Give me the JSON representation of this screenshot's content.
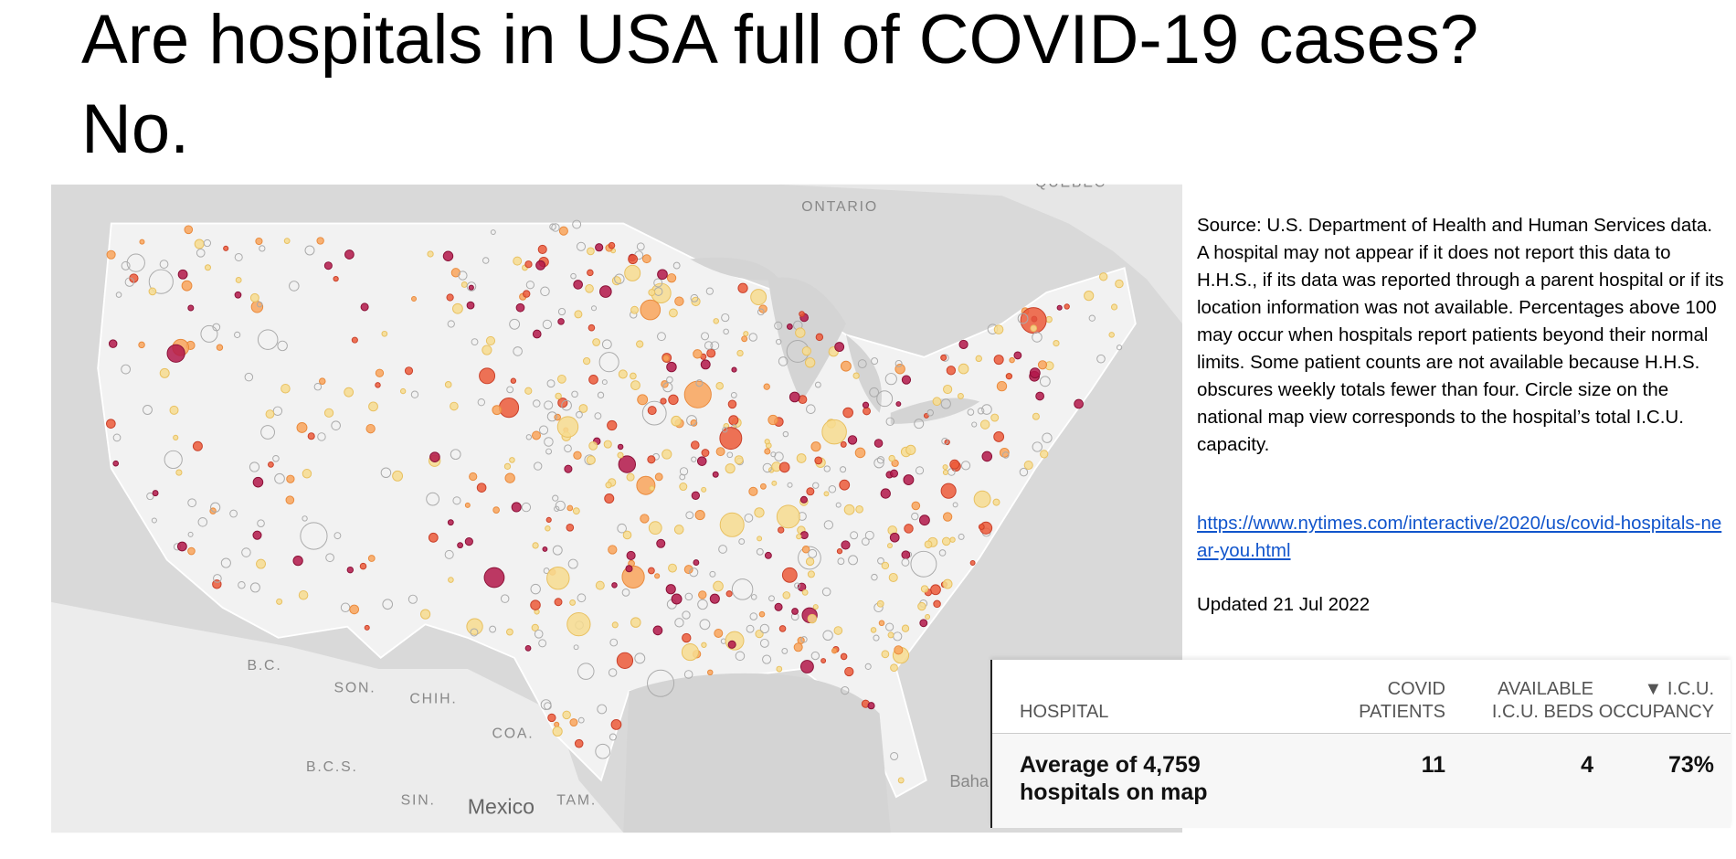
{
  "title": {
    "lines": [
      "Are hospitals in USA full of COVID-19 cases?",
      "No."
    ]
  },
  "map": {
    "labels": [
      "ONTARIO",
      "QUEBEC",
      "B.C.",
      "SON.",
      "CHIH.",
      "COA.",
      "B.C.S.",
      "SIN.",
      "TAM.",
      "Mexico",
      "Baha"
    ]
  },
  "notes": {
    "source": "Source: U.S. Department of Health and Human Services data. A hospital may not appear if it does not report this data to H.H.S., if its data was reported through a parent hospital or if its location information was not available. Percentages above 100 may occur when hospitals report patients beyond their normal limits. Some patient counts are not available because H.H.S. obscures weekly totals fewer than four. Circle size on the national map view corresponds to the hospital’s total I.C.U. capacity.",
    "link": "https://www.nytimes.com/interactive/2020/us/covid-hospitals-near-you.html",
    "updated": "Updated 21 Jul 2022"
  },
  "table": {
    "headers": [
      [
        "HOSPITAL"
      ],
      [
        "COVID",
        "PATIENTS"
      ],
      [
        "AVAILABLE",
        "I.C.U. BEDS"
      ],
      [
        "▼ I.C.U.",
        "OCCUPANCY"
      ]
    ],
    "rows": [
      [
        [
          "Average of 4,759",
          "hospitals on map"
        ],
        "11",
        "4",
        "73%"
      ]
    ]
  }
}
